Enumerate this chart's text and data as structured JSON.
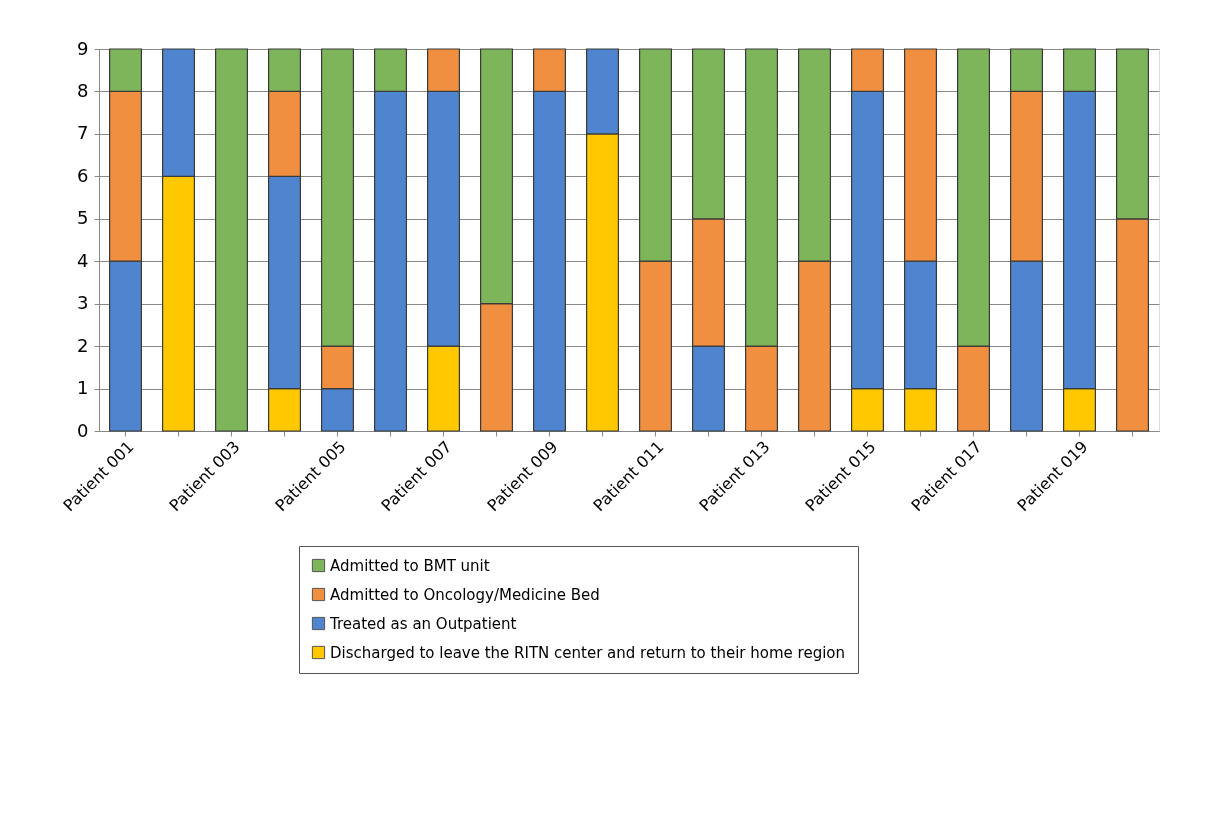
{
  "chart_data": {
    "type": "bar",
    "stacked": true,
    "categories": [
      "Patient 001",
      null,
      "Patient 003",
      null,
      "Patient 005",
      null,
      "Patient 007",
      null,
      "Patient 009",
      null,
      "Patient 011",
      null,
      "Patient 013",
      null,
      "Patient 015",
      null,
      "Patient 017",
      null,
      "Patient 019",
      null
    ],
    "series": [
      {
        "name": "Discharged to leave the RITN center and return to their home region",
        "color": "#ffc800",
        "values": [
          0,
          6,
          0,
          1,
          0,
          0,
          2,
          0,
          0,
          7,
          0,
          0,
          0,
          0,
          1,
          1,
          0,
          0,
          1,
          0
        ]
      },
      {
        "name": "Treated as an Outpatient",
        "color": "#4f85cf",
        "values": [
          4,
          3,
          0,
          5,
          1,
          8,
          6,
          0,
          8,
          2,
          0,
          2,
          0,
          0,
          7,
          3,
          0,
          4,
          7,
          0
        ]
      },
      {
        "name": "Admitted to Oncology/Medicine Bed",
        "color": "#f08f3f",
        "values": [
          4,
          0,
          0,
          2,
          1,
          0,
          1,
          3,
          1,
          0,
          4,
          3,
          2,
          4,
          1,
          5,
          2,
          4,
          0,
          5
        ]
      },
      {
        "name": "Admitted to BMT unit",
        "color": "#7eb55a",
        "values": [
          1,
          0,
          9,
          1,
          7,
          1,
          0,
          6,
          0,
          0,
          5,
          4,
          7,
          5,
          0,
          0,
          7,
          1,
          1,
          4
        ]
      }
    ],
    "ylim": [
      0,
      9
    ],
    "yticks": [
      0,
      1,
      2,
      3,
      4,
      5,
      6,
      7,
      8,
      9
    ],
    "grid": "y",
    "legend": "bottom"
  }
}
